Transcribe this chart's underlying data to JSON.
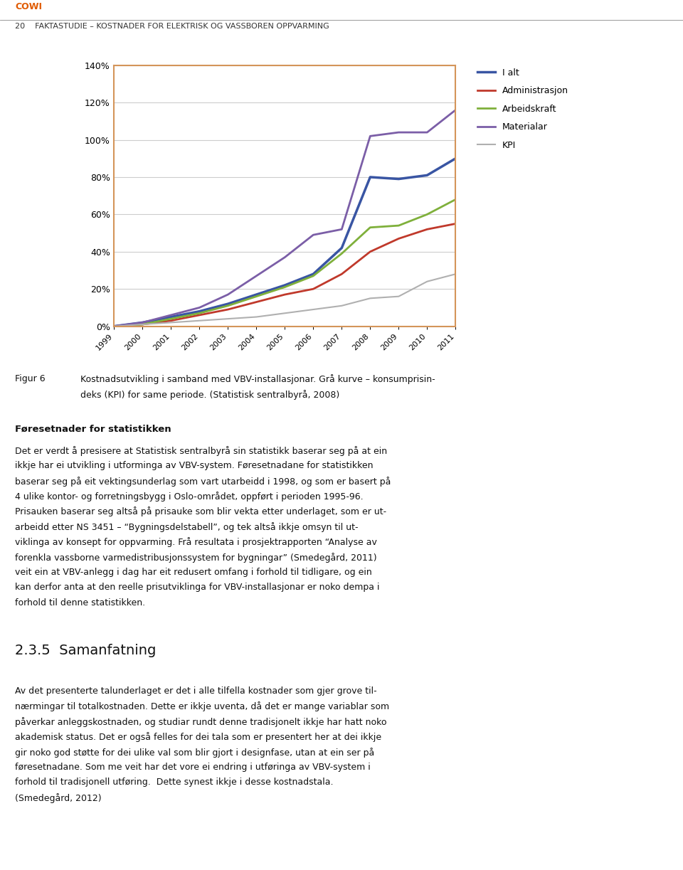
{
  "header_cowi": "COWI",
  "header_line": "20    FAKTASTUDIE – KOSTNADER FOR ELEKTRISK OG VASSBOREN OPPVARMING",
  "years": [
    1999,
    2000,
    2001,
    2002,
    2003,
    2004,
    2005,
    2006,
    2007,
    2008,
    2009,
    2010,
    2011
  ],
  "series": {
    "I alt": {
      "color": "#3955a3",
      "linewidth": 2.5,
      "values": [
        0,
        2,
        5,
        8,
        12,
        17,
        22,
        28,
        42,
        80,
        79,
        81,
        90
      ]
    },
    "Administrasjon": {
      "color": "#c0392b",
      "linewidth": 2.0,
      "values": [
        0,
        1,
        3,
        6,
        9,
        13,
        17,
        20,
        28,
        40,
        47,
        52,
        55
      ]
    },
    "Arbeidskraft": {
      "color": "#7fb03b",
      "linewidth": 2.0,
      "values": [
        0,
        1,
        4,
        7,
        11,
        16,
        21,
        27,
        39,
        53,
        54,
        60,
        68
      ]
    },
    "Materialar": {
      "color": "#7b5ea7",
      "linewidth": 2.0,
      "values": [
        0,
        2,
        6,
        10,
        17,
        27,
        37,
        49,
        52,
        102,
        104,
        104,
        116
      ]
    },
    "KPI": {
      "color": "#b0b0b0",
      "linewidth": 1.5,
      "values": [
        0,
        1,
        2,
        3,
        4,
        5,
        7,
        9,
        11,
        15,
        16,
        24,
        28
      ]
    }
  },
  "ylim": [
    0,
    140
  ],
  "yticks": [
    0,
    20,
    40,
    60,
    80,
    100,
    120,
    140
  ],
  "box_color": "#d4955a",
  "grid_color": "#cccccc",
  "background_color": "#ffffff"
}
